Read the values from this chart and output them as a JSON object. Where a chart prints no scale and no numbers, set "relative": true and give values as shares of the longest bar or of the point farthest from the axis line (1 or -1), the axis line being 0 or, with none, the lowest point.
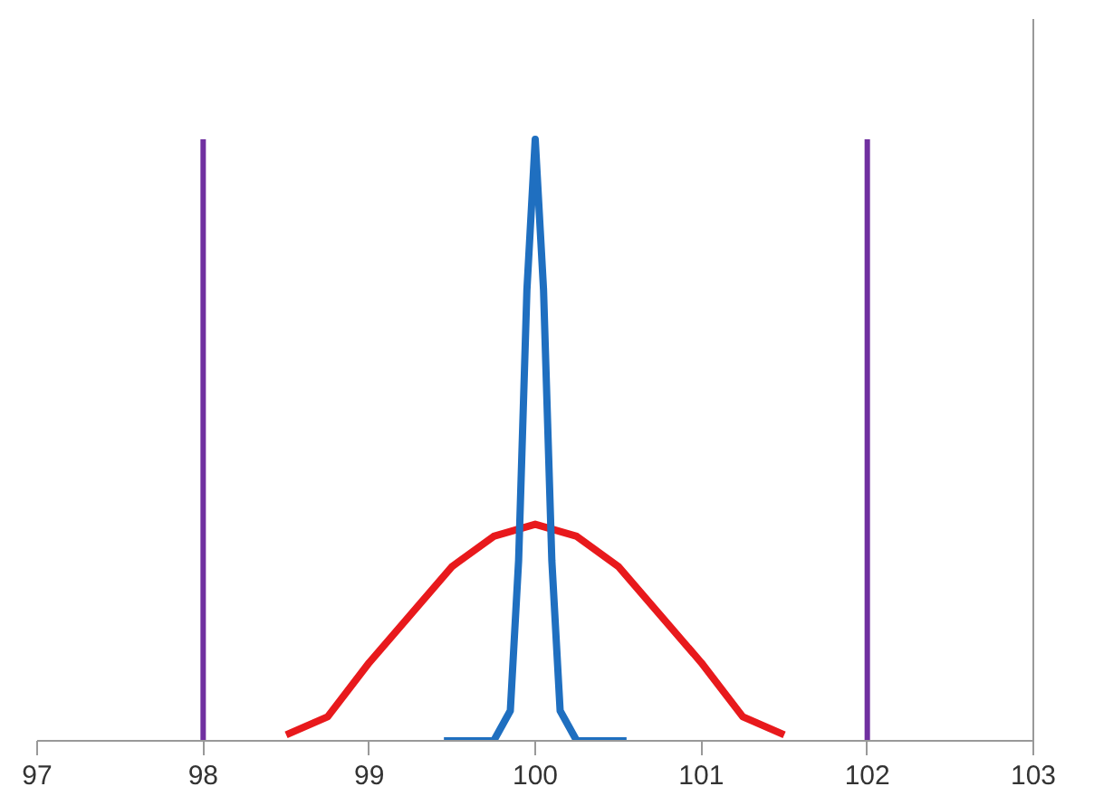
{
  "chart_data": {
    "type": "line",
    "relative": true,
    "xlim": [
      97,
      103
    ],
    "xticks": [
      97,
      98,
      99,
      100,
      101,
      102,
      103
    ],
    "tick_labels": "x",
    "grid": false,
    "series": [
      {
        "color": "#e8191c",
        "x": [
          98.5,
          98.75,
          99,
          99.25,
          99.5,
          99.75,
          100,
          100.25,
          100.5,
          100.75,
          101,
          101.25,
          101.5
        ],
        "values": [
          0.01,
          0.04,
          0.13,
          0.21,
          0.29,
          0.34,
          0.36,
          0.34,
          0.29,
          0.21,
          0.13,
          0.04,
          0.01
        ]
      },
      {
        "color": "#1f6fc0",
        "x": [
          99.45,
          99.75,
          99.85,
          99.9,
          99.95,
          100,
          100.05,
          100.1,
          100.15,
          100.25,
          100.55
        ],
        "values": [
          0,
          0,
          0.05,
          0.3,
          0.75,
          1,
          0.75,
          0.3,
          0.05,
          0,
          0
        ]
      }
    ],
    "ref_lines": [
      {
        "axis": "x",
        "value": 98,
        "color": "#7030a0"
      },
      {
        "axis": "x",
        "value": 102,
        "color": "#7030a0"
      }
    ]
  }
}
